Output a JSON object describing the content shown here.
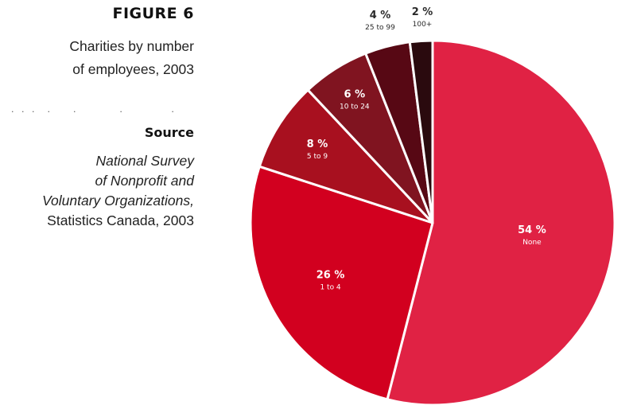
{
  "figure": {
    "label": "FIGURE 6",
    "title_lines": [
      "Charities by number",
      "of employees, 2003"
    ],
    "dots": ". . .  .    .        .         .",
    "source_heading": "Source",
    "source_lines_italic": [
      "National Survey",
      "of Nonprofit and",
      "Voluntary Organizations,"
    ],
    "source_line_plain": "Statistics Canada, 2003"
  },
  "chart_data": {
    "type": "pie",
    "title": "Charities by number of employees, 2003",
    "slices": [
      {
        "category": "None",
        "value": 54,
        "label": "54 %",
        "color": "#e02244"
      },
      {
        "category": "1 to 4",
        "value": 26,
        "label": "26 %",
        "color": "#d2001f"
      },
      {
        "category": "5 to 9",
        "value": 8,
        "label": "8 %",
        "color": "#a8101f"
      },
      {
        "category": "10 to 24",
        "value": 6,
        "label": "6 %",
        "color": "#801420"
      },
      {
        "category": "25 to 99",
        "value": 4,
        "label": "4 %",
        "color": "#570814"
      },
      {
        "category": "100+",
        "value": 2,
        "label": "2 %",
        "color": "#2a0a0e"
      }
    ],
    "label_placement": "inside (small slices above the pie)",
    "separator_color": "#ffffff"
  }
}
